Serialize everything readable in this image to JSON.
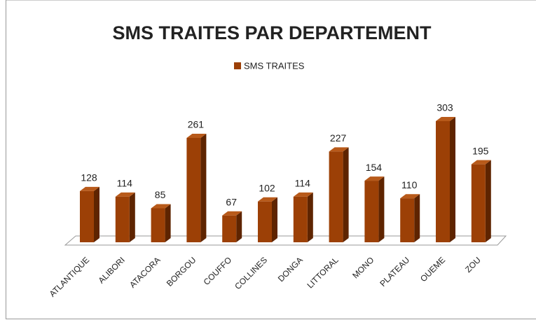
{
  "chart_data": {
    "type": "bar3d",
    "title": "SMS TRAITES PAR DEPARTEMENT",
    "categories": [
      "ATLANTIQUE",
      "ALIBORI",
      "ATACORA",
      "BORGOU",
      "COUFFO",
      "COLLINES",
      "DONGA",
      "LITTORAL",
      "MONO",
      "PLATEAU",
      "OUEME",
      "ZOU"
    ],
    "series": [
      {
        "name": "SMS TRAITES",
        "color": "#9c4006",
        "values": [
          128,
          114,
          85,
          261,
          67,
          102,
          114,
          227,
          154,
          110,
          303,
          195
        ]
      }
    ]
  }
}
